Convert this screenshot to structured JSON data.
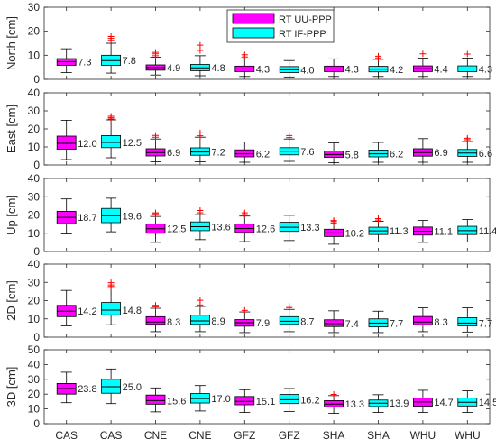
{
  "chart_data": {
    "type": "boxplot",
    "categories": [
      "CAS",
      "CAS",
      "CNE",
      "CNE",
      "GFZ",
      "GFZ",
      "SHA",
      "SHA",
      "WHU",
      "WHU"
    ],
    "series_of_box": [
      "RT UU-PPP",
      "RT IF-PPP",
      "RT UU-PPP",
      "RT IF-PPP",
      "RT UU-PPP",
      "RT IF-PPP",
      "RT UU-PPP",
      "RT IF-PPP",
      "RT UU-PPP",
      "RT IF-PPP"
    ],
    "legend": {
      "position": "top-center",
      "entries": [
        {
          "name": "RT UU-PPP",
          "color": "#ff00ff"
        },
        {
          "name": "RT IF-PPP",
          "color": "#00ffff"
        }
      ]
    },
    "outlier_color": "#ff0000",
    "grid": false,
    "panels": [
      {
        "ylabel": "North [cm]",
        "ylim": [
          0,
          30
        ],
        "yticks": [
          0,
          10,
          20,
          30
        ],
        "boxes": [
          {
            "q1": 5.8,
            "median": 7.3,
            "q3": 8.6,
            "whisker_low": 2.8,
            "whisker_high": 12.7,
            "label": "7.3",
            "outliers": []
          },
          {
            "q1": 5.8,
            "median": 7.8,
            "q3": 10.0,
            "whisker_low": 2.6,
            "whisker_high": 15.0,
            "label": "7.8",
            "outliers": [
              16.2,
              17.0,
              17.8
            ]
          },
          {
            "q1": 3.8,
            "median": 4.9,
            "q3": 6.0,
            "whisker_low": 1.8,
            "whisker_high": 9.2,
            "label": "4.9",
            "outliers": [
              9.8,
              10.6,
              11.2
            ]
          },
          {
            "q1": 3.6,
            "median": 4.8,
            "q3": 6.2,
            "whisker_low": 1.5,
            "whisker_high": 9.8,
            "label": "4.8",
            "outliers": [
              12.0,
              14.2
            ]
          },
          {
            "q1": 3.2,
            "median": 4.3,
            "q3": 5.5,
            "whisker_low": 1.2,
            "whisker_high": 8.5,
            "label": "4.3",
            "outliers": [
              9.3,
              10.2
            ]
          },
          {
            "q1": 2.8,
            "median": 4.0,
            "q3": 5.3,
            "whisker_low": 1.0,
            "whisker_high": 7.8,
            "label": "4.0",
            "outliers": []
          },
          {
            "q1": 3.2,
            "median": 4.3,
            "q3": 5.5,
            "whisker_low": 1.2,
            "whisker_high": 8.5,
            "label": "4.3",
            "outliers": []
          },
          {
            "q1": 3.1,
            "median": 4.2,
            "q3": 5.4,
            "whisker_low": 1.2,
            "whisker_high": 8.3,
            "label": "4.2",
            "outliers": [
              8.9,
              9.6
            ]
          },
          {
            "q1": 3.2,
            "median": 4.4,
            "q3": 5.6,
            "whisker_low": 1.2,
            "whisker_high": 8.8,
            "label": "4.4",
            "outliers": [
              10.6
            ]
          },
          {
            "q1": 3.2,
            "median": 4.3,
            "q3": 5.6,
            "whisker_low": 1.2,
            "whisker_high": 8.8,
            "label": "4.3",
            "outliers": [
              10.5
            ]
          }
        ]
      },
      {
        "ylabel": "East [cm]",
        "ylim": [
          0,
          40
        ],
        "yticks": [
          0,
          10,
          20,
          30,
          40
        ],
        "boxes": [
          {
            "q1": 8.7,
            "median": 12.0,
            "q3": 16.0,
            "whisker_low": 3.0,
            "whisker_high": 24.8,
            "label": "12.0",
            "outliers": []
          },
          {
            "q1": 9.6,
            "median": 12.5,
            "q3": 16.3,
            "whisker_low": 4.0,
            "whisker_high": 25.0,
            "label": "12.5",
            "outliers": [
              25.5,
              26.2,
              27.0
            ]
          },
          {
            "q1": 5.0,
            "median": 6.9,
            "q3": 9.0,
            "whisker_low": 1.8,
            "whisker_high": 14.4,
            "label": "6.9",
            "outliers": [
              15.4,
              16.4
            ]
          },
          {
            "q1": 5.4,
            "median": 7.2,
            "q3": 9.5,
            "whisker_low": 1.8,
            "whisker_high": 15.4,
            "label": "7.2",
            "outliers": [
              16.2,
              17.8
            ]
          },
          {
            "q1": 4.5,
            "median": 6.2,
            "q3": 8.4,
            "whisker_low": 1.5,
            "whisker_high": 12.8,
            "label": "6.2",
            "outliers": []
          },
          {
            "q1": 5.6,
            "median": 7.6,
            "q3": 9.6,
            "whisker_low": 2.0,
            "whisker_high": 14.4,
            "label": "7.6",
            "outliers": [
              15.2,
              16.3
            ]
          },
          {
            "q1": 4.2,
            "median": 5.8,
            "q3": 7.8,
            "whisker_low": 1.2,
            "whisker_high": 12.2,
            "label": "5.8",
            "outliers": []
          },
          {
            "q1": 4.5,
            "median": 6.2,
            "q3": 8.3,
            "whisker_low": 1.5,
            "whisker_high": 12.5,
            "label": "6.2",
            "outliers": []
          },
          {
            "q1": 4.9,
            "median": 6.9,
            "q3": 9.0,
            "whisker_low": 1.5,
            "whisker_high": 14.6,
            "label": "6.9",
            "outliers": []
          },
          {
            "q1": 4.8,
            "median": 6.6,
            "q3": 8.6,
            "whisker_low": 1.5,
            "whisker_high": 13.0,
            "label": "6.6",
            "outliers": [
              14.0,
              14.8
            ]
          }
        ]
      },
      {
        "ylabel": "Up [cm]",
        "ylim": [
          0,
          40
        ],
        "yticks": [
          0,
          10,
          20,
          30,
          40
        ],
        "boxes": [
          {
            "q1": 15.2,
            "median": 18.7,
            "q3": 22.0,
            "whisker_low": 9.6,
            "whisker_high": 28.8,
            "label": "18.7",
            "outliers": []
          },
          {
            "q1": 15.8,
            "median": 19.6,
            "q3": 23.6,
            "whisker_low": 10.8,
            "whisker_high": 29.2,
            "label": "19.6",
            "outliers": []
          },
          {
            "q1": 10.0,
            "median": 12.5,
            "q3": 15.0,
            "whisker_low": 5.0,
            "whisker_high": 19.2,
            "label": "12.5",
            "outliers": [
              20.0,
              20.6,
              21.2
            ]
          },
          {
            "q1": 11.4,
            "median": 13.6,
            "q3": 16.2,
            "whisker_low": 6.5,
            "whisker_high": 20.2,
            "label": "13.6",
            "outliers": [
              21.2,
              22.5
            ]
          },
          {
            "q1": 10.4,
            "median": 12.6,
            "q3": 15.0,
            "whisker_low": 5.4,
            "whisker_high": 19.4,
            "label": "12.6",
            "outliers": [
              20.2,
              21.2
            ]
          },
          {
            "q1": 11.0,
            "median": 13.3,
            "q3": 16.0,
            "whisker_low": 6.0,
            "whisker_high": 19.8,
            "label": "13.3",
            "outliers": []
          },
          {
            "q1": 8.2,
            "median": 10.2,
            "q3": 12.2,
            "whisker_low": 4.0,
            "whisker_high": 15.0,
            "label": "10.2",
            "outliers": [
              15.6,
              16.4,
              17.0
            ]
          },
          {
            "q1": 9.3,
            "median": 11.3,
            "q3": 13.3,
            "whisker_low": 5.2,
            "whisker_high": 16.5,
            "label": "11.3",
            "outliers": [
              17.2,
              18.0
            ]
          },
          {
            "q1": 9.0,
            "median": 11.1,
            "q3": 13.4,
            "whisker_low": 5.0,
            "whisker_high": 17.0,
            "label": "11.1",
            "outliers": []
          },
          {
            "q1": 9.3,
            "median": 11.4,
            "q3": 13.8,
            "whisker_low": 5.2,
            "whisker_high": 17.5,
            "label": "11.4",
            "outliers": []
          }
        ]
      },
      {
        "ylabel": "2D [cm]",
        "ylim": [
          0,
          40
        ],
        "yticks": [
          0,
          10,
          20,
          30,
          40
        ],
        "boxes": [
          {
            "q1": 11.2,
            "median": 14.2,
            "q3": 17.4,
            "whisker_low": 6.2,
            "whisker_high": 25.6,
            "label": "14.2",
            "outliers": []
          },
          {
            "q1": 12.2,
            "median": 14.8,
            "q3": 19.0,
            "whisker_low": 6.8,
            "whisker_high": 27.0,
            "label": "14.8",
            "outliers": [
              27.8,
              28.6,
              29.8
            ]
          },
          {
            "q1": 7.0,
            "median": 8.3,
            "q3": 11.2,
            "whisker_low": 3.0,
            "whisker_high": 15.8,
            "label": "8.3",
            "outliers": [
              16.6,
              17.4
            ]
          },
          {
            "q1": 7.0,
            "median": 8.9,
            "q3": 12.0,
            "whisker_low": 3.0,
            "whisker_high": 16.8,
            "label": "8.9",
            "outliers": [
              17.6,
              20.2
            ]
          },
          {
            "q1": 6.0,
            "median": 7.9,
            "q3": 9.6,
            "whisker_low": 2.5,
            "whisker_high": 13.8,
            "label": "7.9",
            "outliers": [
              14.6
            ]
          },
          {
            "q1": 7.0,
            "median": 8.7,
            "q3": 11.2,
            "whisker_low": 3.0,
            "whisker_high": 15.2,
            "label": "8.7",
            "outliers": [
              16.2,
              17.0
            ]
          },
          {
            "q1": 5.8,
            "median": 7.4,
            "q3": 9.5,
            "whisker_low": 2.5,
            "whisker_high": 14.4,
            "label": "7.4",
            "outliers": []
          },
          {
            "q1": 5.6,
            "median": 7.7,
            "q3": 10.0,
            "whisker_low": 2.5,
            "whisker_high": 14.2,
            "label": "7.7",
            "outliers": []
          },
          {
            "q1": 6.8,
            "median": 8.3,
            "q3": 11.3,
            "whisker_low": 3.0,
            "whisker_high": 16.0,
            "label": "8.3",
            "outliers": []
          },
          {
            "q1": 6.2,
            "median": 7.7,
            "q3": 10.6,
            "whisker_low": 2.8,
            "whisker_high": 16.0,
            "label": "7.7",
            "outliers": []
          }
        ]
      },
      {
        "ylabel": "3D [cm]",
        "ylim": [
          0,
          50
        ],
        "yticks": [
          0,
          10,
          20,
          30,
          40,
          50
        ],
        "boxes": [
          {
            "q1": 20.0,
            "median": 23.8,
            "q3": 27.2,
            "whisker_low": 14.2,
            "whisker_high": 34.8,
            "label": "23.8",
            "outliers": []
          },
          {
            "q1": 20.6,
            "median": 25.0,
            "q3": 30.0,
            "whisker_low": 13.6,
            "whisker_high": 37.0,
            "label": "25.0",
            "outliers": []
          },
          {
            "q1": 13.2,
            "median": 15.6,
            "q3": 19.4,
            "whisker_low": 8.0,
            "whisker_high": 24.2,
            "label": "15.6",
            "outliers": []
          },
          {
            "q1": 14.0,
            "median": 17.0,
            "q3": 20.4,
            "whisker_low": 8.6,
            "whisker_high": 25.8,
            "label": "17.0",
            "outliers": []
          },
          {
            "q1": 12.8,
            "median": 15.1,
            "q3": 18.4,
            "whisker_low": 7.6,
            "whisker_high": 23.0,
            "label": "15.1",
            "outliers": []
          },
          {
            "q1": 13.6,
            "median": 16.2,
            "q3": 19.8,
            "whisker_low": 8.2,
            "whisker_high": 23.8,
            "label": "16.2",
            "outliers": []
          },
          {
            "q1": 11.4,
            "median": 13.3,
            "q3": 15.6,
            "whisker_low": 7.0,
            "whisker_high": 19.0,
            "label": "13.3",
            "outliers": [
              19.8
            ]
          },
          {
            "q1": 11.6,
            "median": 13.9,
            "q3": 16.0,
            "whisker_low": 7.6,
            "whisker_high": 19.6,
            "label": "13.9",
            "outliers": []
          },
          {
            "q1": 11.8,
            "median": 14.7,
            "q3": 17.4,
            "whisker_low": 7.6,
            "whisker_high": 22.6,
            "label": "14.7",
            "outliers": []
          },
          {
            "q1": 12.0,
            "median": 14.5,
            "q3": 17.4,
            "whisker_low": 7.6,
            "whisker_high": 22.2,
            "label": "14.5",
            "outliers": []
          }
        ]
      }
    ]
  }
}
